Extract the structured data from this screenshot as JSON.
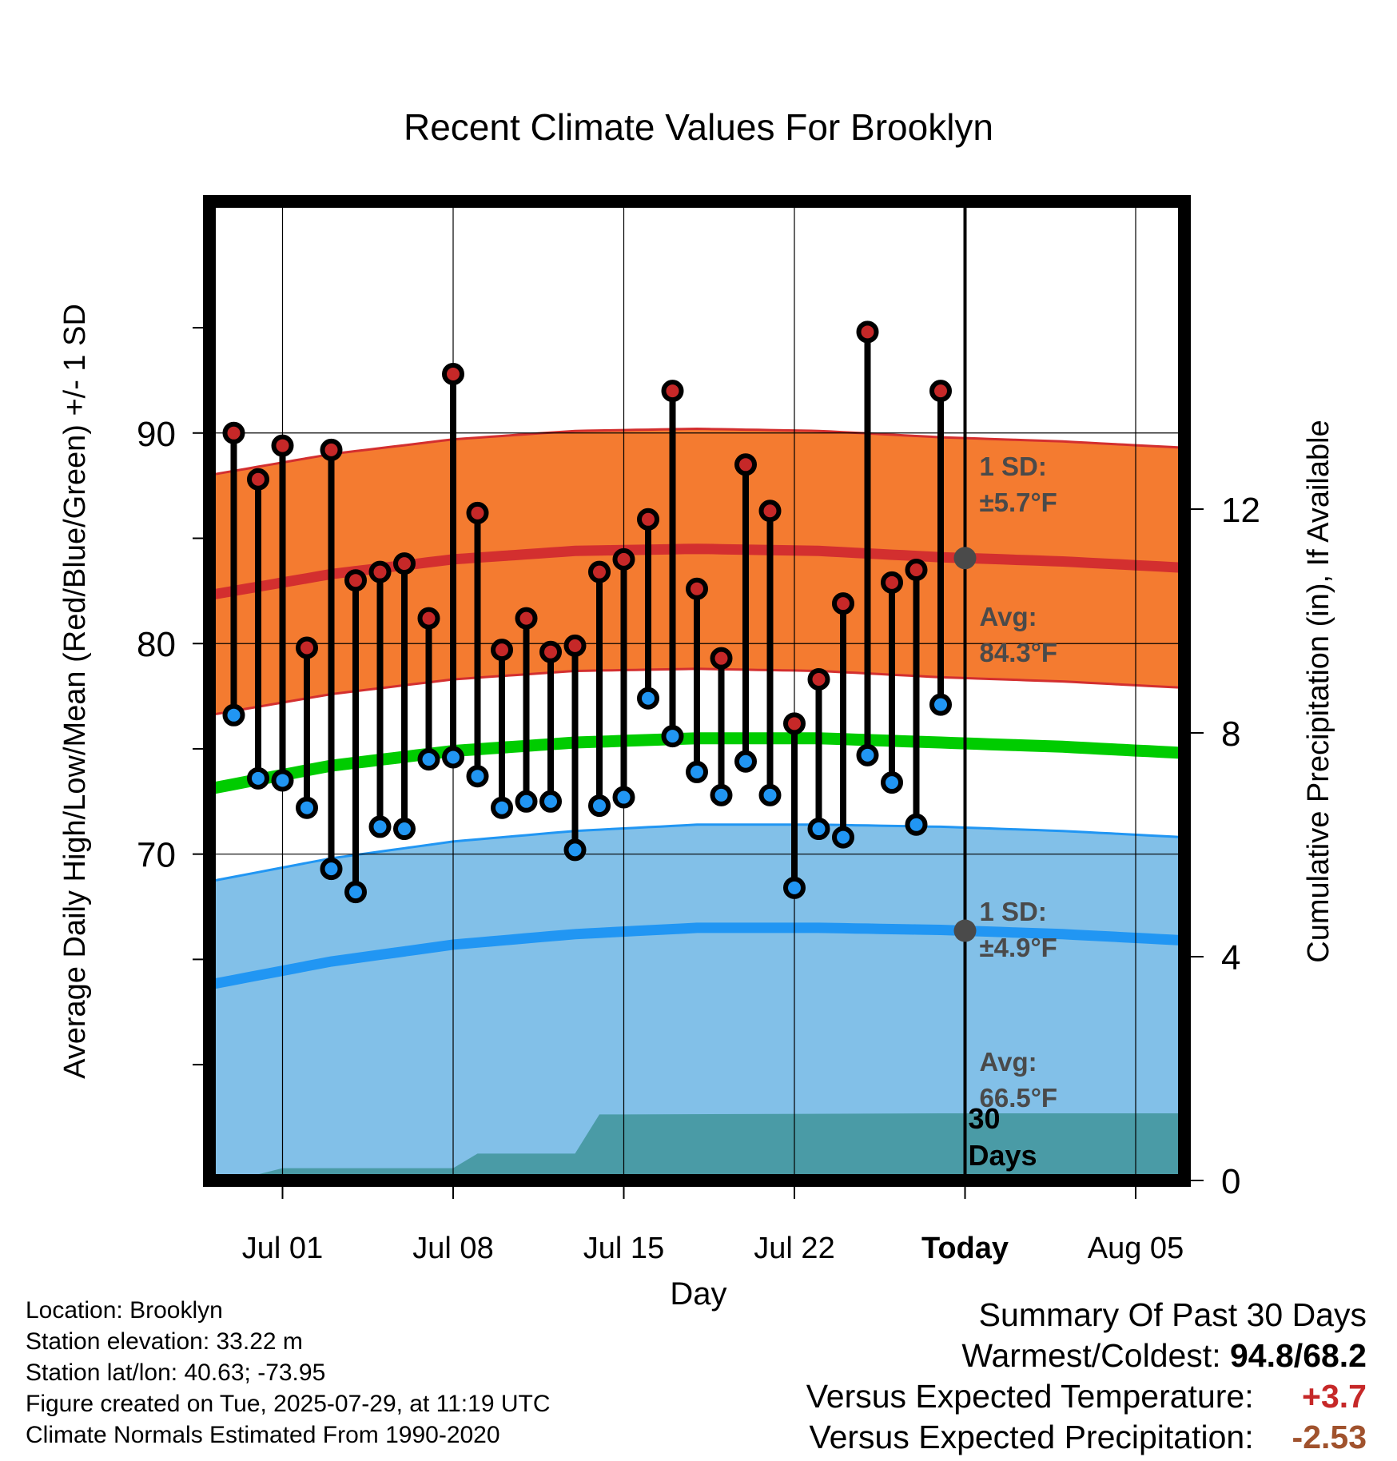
{
  "chart_data": {
    "type": "line",
    "title": "Recent Climate Values For Brooklyn",
    "xlabel": "Day",
    "ylabel_left": "Average Daily High/Low/Mean (Red/Blue/Green) +/- 1 SD",
    "ylabel_right": "Cumulative Precipitation (in), If Available",
    "x_ticks": [
      "Jul 01",
      "Jul 08",
      "Jul 15",
      "Jul 22",
      "Today",
      "Aug 05"
    ],
    "x_tick_days": [
      3,
      10,
      17,
      24,
      31,
      38
    ],
    "x_range_days": [
      0,
      40
    ],
    "ylim_left": [
      54.5,
      101
    ],
    "yticks_left": [
      70,
      80,
      90
    ],
    "ylim_right": [
      0,
      17.5
    ],
    "yticks_right": [
      0,
      4,
      8,
      12
    ],
    "today_day": 31,
    "grid": true,
    "normals": {
      "high_mean": [
        [
          0,
          82.3
        ],
        [
          5,
          83.3
        ],
        [
          10,
          84.0
        ],
        [
          15,
          84.4
        ],
        [
          20,
          84.5
        ],
        [
          25,
          84.4
        ],
        [
          30,
          84.1
        ],
        [
          35,
          83.9
        ],
        [
          40,
          83.6
        ]
      ],
      "high_sd": 5.7,
      "low_mean": [
        [
          0,
          63.8
        ],
        [
          5,
          64.9
        ],
        [
          10,
          65.7
        ],
        [
          15,
          66.2
        ],
        [
          20,
          66.5
        ],
        [
          25,
          66.5
        ],
        [
          30,
          66.4
        ],
        [
          35,
          66.2
        ],
        [
          40,
          65.9
        ]
      ],
      "low_sd": 4.9,
      "avg_mean": [
        [
          0,
          73.1
        ],
        [
          5,
          74.2
        ],
        [
          10,
          74.9
        ],
        [
          15,
          75.3
        ],
        [
          20,
          75.5
        ],
        [
          25,
          75.5
        ],
        [
          30,
          75.3
        ],
        [
          35,
          75.1
        ],
        [
          40,
          74.8
        ]
      ]
    },
    "series": [
      {
        "name": "High",
        "color": "#c62828",
        "days": [
          1,
          2,
          3,
          4,
          5,
          6,
          7,
          8,
          9,
          10,
          11,
          12,
          13,
          14,
          15,
          16,
          17,
          18,
          19,
          20,
          21,
          22,
          23,
          24,
          25,
          26,
          27,
          28,
          29,
          30
        ],
        "values": [
          90.0,
          87.8,
          89.4,
          79.8,
          89.2,
          83.0,
          83.4,
          83.8,
          81.2,
          92.8,
          86.2,
          79.7,
          81.2,
          79.6,
          79.9,
          83.4,
          84.0,
          85.9,
          92.0,
          82.6,
          79.3,
          88.5,
          86.3,
          76.2,
          78.3,
          81.9,
          94.8,
          82.9,
          83.5,
          92.0
        ]
      },
      {
        "name": "Low",
        "color": "#2196f3",
        "days": [
          1,
          2,
          3,
          4,
          5,
          6,
          7,
          8,
          9,
          10,
          11,
          12,
          13,
          14,
          15,
          16,
          17,
          18,
          19,
          20,
          21,
          22,
          23,
          24,
          25,
          26,
          27,
          28,
          29,
          30
        ],
        "values": [
          76.6,
          73.6,
          73.5,
          72.2,
          69.3,
          68.2,
          71.3,
          71.2,
          74.5,
          74.6,
          73.7,
          72.2,
          72.5,
          72.5,
          70.2,
          72.3,
          72.7,
          77.4,
          75.6,
          73.9,
          72.8,
          74.4,
          72.8,
          68.4,
          71.2,
          70.8,
          74.7,
          73.4,
          71.4,
          77.1
        ]
      }
    ],
    "precip_cumulative": [
      [
        1,
        0.0
      ],
      [
        3,
        0.22
      ],
      [
        10,
        0.22
      ],
      [
        11,
        0.48
      ],
      [
        15,
        0.48
      ],
      [
        16,
        1.18
      ],
      [
        17,
        1.18
      ],
      [
        30,
        1.2
      ],
      [
        40,
        1.2
      ]
    ],
    "annotations": {
      "high_sd_label": "1 SD:",
      "high_sd_value": "±5.7°F",
      "high_avg_label": "Avg:",
      "high_avg_value": "84.3°F",
      "low_sd_label": "1 SD:",
      "low_sd_value": "±4.9°F",
      "low_avg_label": "Avg:",
      "low_avg_value": "66.5°F",
      "days_label_1": "30",
      "days_label_2": "Days"
    },
    "colors": {
      "high_band": "#f47b30",
      "high_mean": "#d32f2f",
      "low_band": "#82c0e8",
      "low_mean": "#2196f3",
      "avg_mean": "#00cc00",
      "precip": "#4a9ba6",
      "high_point": "#c62828",
      "low_point": "#2196f3"
    }
  },
  "footer": {
    "location": "Location: Brooklyn",
    "elevation": "Station elevation: 33.22 m",
    "latlon": "Station lat/lon: 40.63; -73.95",
    "created": "Figure created on Tue, 2025-07-29, at 11:19 UTC",
    "normals": "Climate Normals Estimated From 1990-2020"
  },
  "summary": {
    "heading": "Summary Of Past 30 Days",
    "warm_cold_label": "Warmest/Coldest:",
    "warm_cold_value": "94.8/68.2",
    "temp_label": "Versus Expected Temperature:",
    "temp_value": "+3.7",
    "precip_label": "Versus Expected Precipitation:",
    "precip_value": "-2.53"
  }
}
